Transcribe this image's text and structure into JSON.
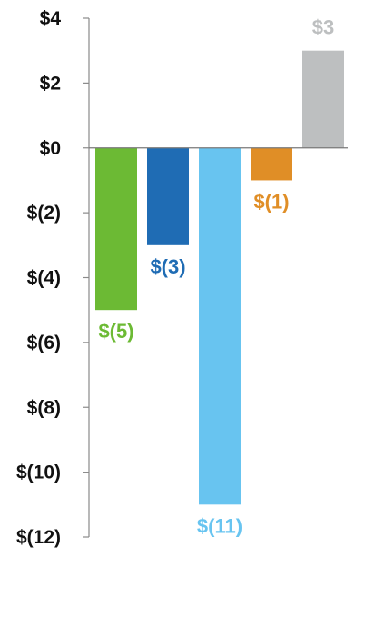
{
  "chart_data": {
    "type": "bar",
    "categories": [
      "",
      "",
      "",
      "",
      ""
    ],
    "values": [
      -5,
      -3,
      -11,
      -1,
      3
    ],
    "data_labels": [
      "$(5)",
      "$(3)",
      "$(11)",
      "$(1)",
      "$3"
    ],
    "colors": [
      "#6cba34",
      "#1f6cb4",
      "#68c4f0",
      "#e08e26",
      "#bdbfc0"
    ],
    "ylim": [
      -12,
      4
    ],
    "yticks": [
      4,
      2,
      0,
      -2,
      -4,
      -6,
      -8,
      -10,
      -12
    ],
    "ytick_labels": [
      "$4",
      "$2",
      "$0",
      "$(2)",
      "$(4)",
      "$(6)",
      "$(8)",
      "$(10)",
      "$(12)"
    ],
    "title": "",
    "xlabel": "",
    "ylabel": "",
    "grid": false,
    "legend": "none"
  }
}
